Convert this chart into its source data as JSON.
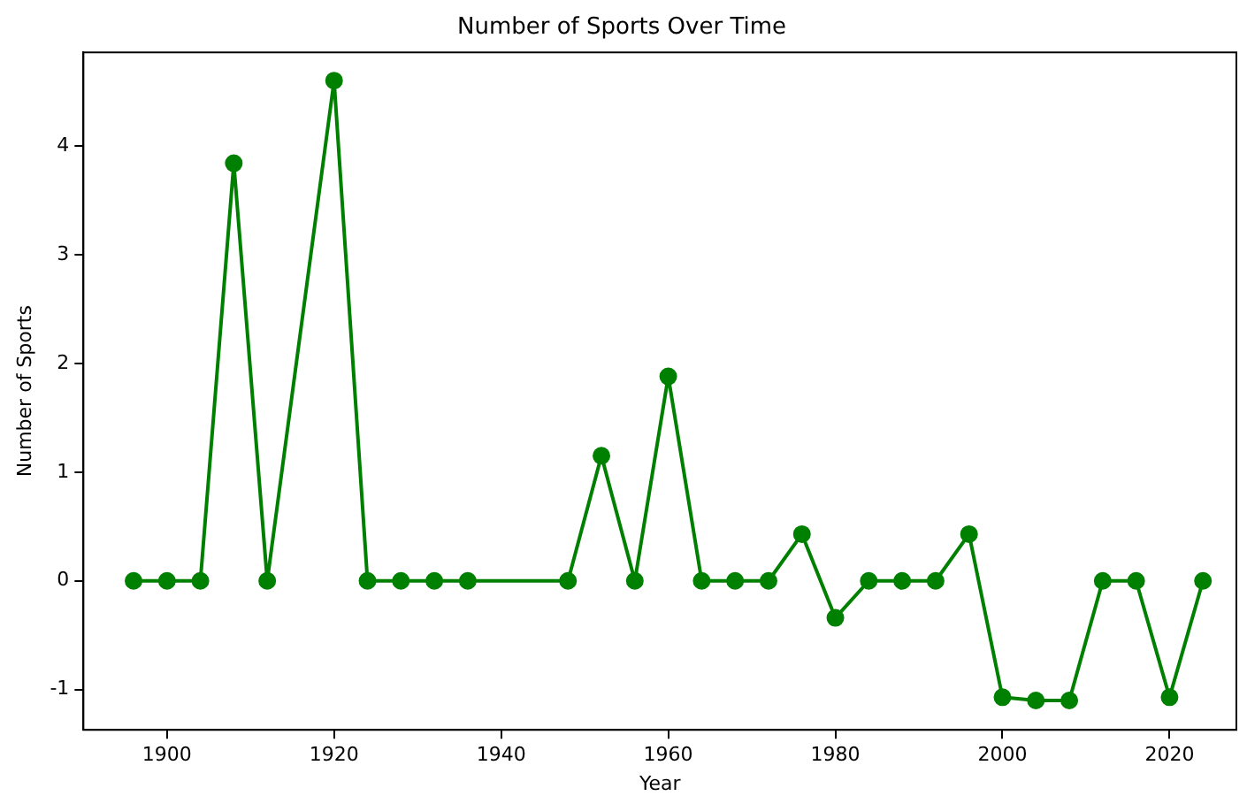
{
  "chart_data": {
    "type": "line",
    "title": "Number of Sports Over Time",
    "xlabel": "Year",
    "ylabel": "Number of Sports",
    "x": [
      1896,
      1900,
      1904,
      1908,
      1912,
      1920,
      1924,
      1928,
      1932,
      1936,
      1948,
      1952,
      1956,
      1960,
      1964,
      1968,
      1972,
      1976,
      1980,
      1984,
      1988,
      1992,
      1996,
      2000,
      2004,
      2008,
      2012,
      2016,
      2020,
      2024
    ],
    "series": [
      {
        "color": "#008000",
        "values": [
          0,
          0,
          0,
          3.84,
          0,
          4.6,
          0,
          0,
          0,
          0,
          0,
          1.15,
          0,
          1.88,
          0,
          0,
          0,
          0.43,
          -0.34,
          0,
          0,
          0,
          0.43,
          -1.07,
          -1.1,
          -1.1,
          0,
          0,
          -1.07,
          0
        ]
      }
    ],
    "xlim": [
      1890,
      2028
    ],
    "xticks": [
      1900,
      1920,
      1940,
      1960,
      1980,
      2000,
      2020
    ],
    "ylim": [
      -1.37,
      4.86
    ],
    "yticks": [
      -1,
      0,
      1,
      2,
      3,
      4
    ],
    "grid": false,
    "legend": false,
    "marker": "circle",
    "line_style": "solid"
  }
}
